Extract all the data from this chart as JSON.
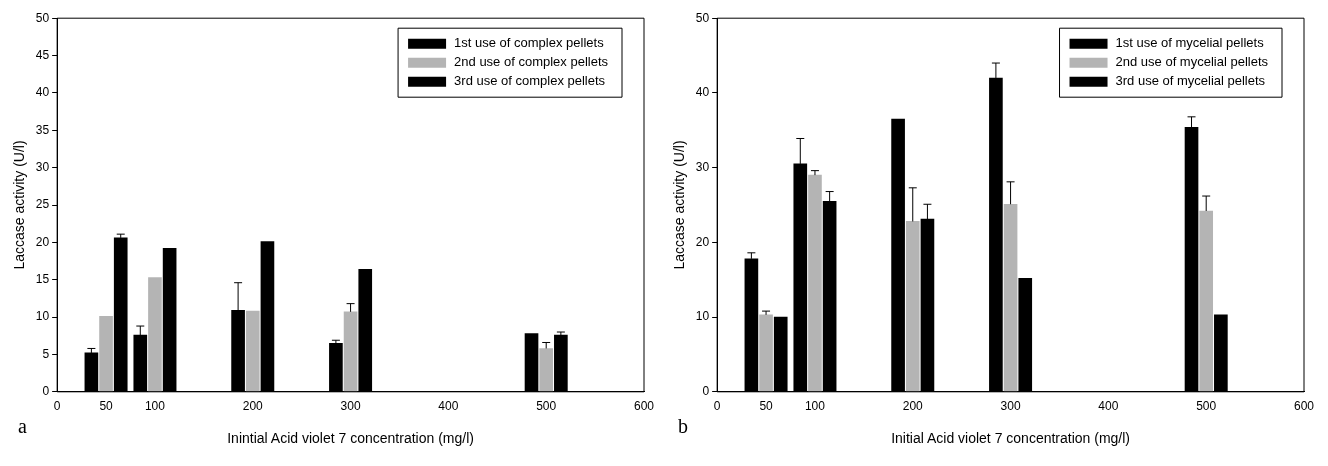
{
  "chart_data": [
    {
      "type": "bar",
      "xlabel": "Inintial Acid violet 7 concentration (mg/l)",
      "ylabel": "Laccase activity (U/l)",
      "annotations": [
        "a"
      ],
      "xlim": [
        0,
        600
      ],
      "xticks": [
        0,
        50,
        100,
        200,
        300,
        400,
        500,
        600
      ],
      "ylim": [
        0,
        50
      ],
      "yticks": [
        0,
        5,
        10,
        15,
        20,
        25,
        30,
        35,
        40,
        45,
        50
      ],
      "grid": false,
      "legend": "top right",
      "series": [
        {
          "name": "1st use of complex pellets",
          "color": "#000000",
          "x": [
            35,
            85,
            185,
            285,
            485
          ],
          "values": [
            5.2,
            7.6,
            10.9,
            6.5,
            7.8
          ],
          "errors": [
            0.6,
            1.2,
            3.7,
            0.4,
            null
          ]
        },
        {
          "name": "2nd use of complex pellets",
          "color": "#b4b4b4",
          "x": [
            50,
            100,
            200,
            300,
            500
          ],
          "values": [
            10.1,
            15.3,
            10.8,
            10.7,
            5.8
          ],
          "errors": [
            null,
            null,
            null,
            1.1,
            0.8
          ]
        },
        {
          "name": "3rd use of complex pellets",
          "color": "#000000",
          "x": [
            65,
            115,
            215,
            315,
            515
          ],
          "values": [
            20.6,
            19.2,
            20.1,
            16.4,
            7.6
          ],
          "errors": [
            0.5,
            null,
            null,
            null,
            0.4
          ]
        }
      ]
    },
    {
      "type": "bar",
      "xlabel": "Initial Acid violet 7 concentration (mg/l)",
      "ylabel": "Laccase activity (U/l)",
      "annotations": [
        "b"
      ],
      "xlim": [
        0,
        600
      ],
      "xticks": [
        0,
        50,
        100,
        200,
        300,
        400,
        500,
        600
      ],
      "ylim": [
        0,
        50
      ],
      "yticks": [
        0,
        10,
        20,
        30,
        40,
        50
      ],
      "grid": false,
      "legend": "top right",
      "series": [
        {
          "name": "1st use of mycelial pellets",
          "color": "#000000",
          "x": [
            35,
            85,
            185,
            285,
            485
          ],
          "values": [
            17.8,
            30.5,
            36.5,
            42.0,
            35.4
          ],
          "errors": [
            0.8,
            3.4,
            null,
            2.0,
            1.4
          ]
        },
        {
          "name": "2nd use of mycelial pellets",
          "color": "#b4b4b4",
          "x": [
            50,
            100,
            200,
            300,
            500
          ],
          "values": [
            10.3,
            29.0,
            22.8,
            25.1,
            24.2
          ],
          "errors": [
            0.5,
            0.6,
            4.5,
            3.0,
            2.0
          ]
        },
        {
          "name": "3rd use of mycelial pellets",
          "color": "#000000",
          "x": [
            65,
            115,
            215,
            315,
            515
          ],
          "values": [
            10.0,
            25.5,
            23.1,
            15.2,
            10.3
          ],
          "errors": [
            null,
            1.3,
            2.0,
            null,
            null
          ]
        }
      ]
    }
  ]
}
